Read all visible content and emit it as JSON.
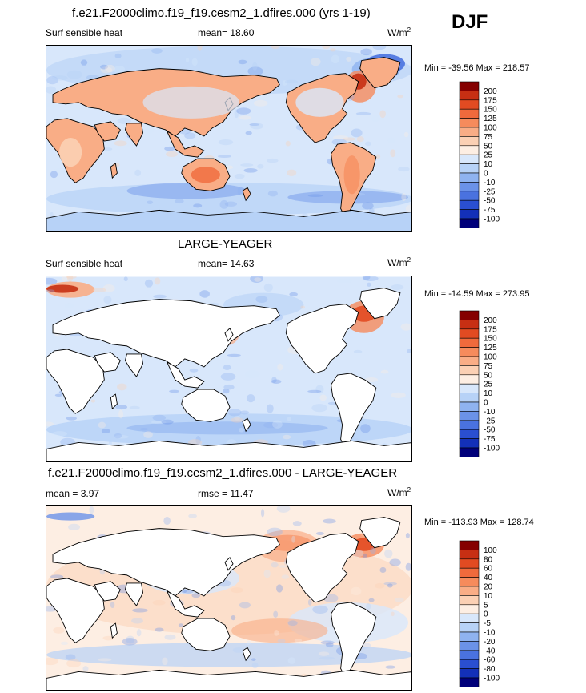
{
  "season": "DJF",
  "panels": [
    {
      "title": "f.e21.F2000climo.f19_f19.cesm2_1.dfires.000 (yrs 1-19)",
      "left_label": "Surf sensible heat",
      "center_label": "mean=  18.60",
      "units_base": "W/m",
      "units_exp": "2",
      "minmax": "Min = -39.56 Max = 218.57",
      "colorbar_labels": [
        "200",
        "175",
        "150",
        "125",
        "100",
        "75",
        "50",
        "25",
        "10",
        "0",
        "-10",
        "-25",
        "-50",
        "-75",
        "-100"
      ],
      "colorbar_colors": [
        "#850000",
        "#c72f13",
        "#e24b22",
        "#f06a3c",
        "#f68b5c",
        "#f9ad86",
        "#fbd0b4",
        "#fdeee3",
        "#d8e7fb",
        "#b7d2f7",
        "#8fb3f0",
        "#6b92e8",
        "#4a72df",
        "#2a4fd1",
        "#1330b8",
        "#00007a"
      ],
      "mask_land": false
    },
    {
      "title": "LARGE-YEAGER",
      "left_label": "Surf sensible heat",
      "center_label": "mean=  14.63",
      "units_base": "W/m",
      "units_exp": "2",
      "minmax": "Min = -14.59 Max = 273.95",
      "colorbar_labels": [
        "200",
        "175",
        "150",
        "125",
        "100",
        "75",
        "50",
        "25",
        "10",
        "0",
        "-10",
        "-25",
        "-50",
        "-75",
        "-100"
      ],
      "colorbar_colors": [
        "#850000",
        "#c72f13",
        "#e24b22",
        "#f06a3c",
        "#f68b5c",
        "#f9ad86",
        "#fbd0b4",
        "#fdeee3",
        "#d8e7fb",
        "#b7d2f7",
        "#8fb3f0",
        "#6b92e8",
        "#4a72df",
        "#2a4fd1",
        "#1330b8",
        "#00007a"
      ],
      "mask_land": true
    },
    {
      "title": "f.e21.F2000climo.f19_f19.cesm2_1.dfires.000 - LARGE-YEAGER",
      "left_label": "mean =   3.97",
      "center_label": "rmse =  11.47",
      "units_base": "W/m",
      "units_exp": "2",
      "minmax": "Min = -113.93 Max = 128.74",
      "colorbar_labels": [
        "100",
        "80",
        "60",
        "40",
        "20",
        "10",
        "5",
        "0",
        "-5",
        "-10",
        "-20",
        "-40",
        "-60",
        "-80",
        "-100"
      ],
      "colorbar_colors": [
        "#850000",
        "#c72f13",
        "#e24b22",
        "#f06a3c",
        "#f68b5c",
        "#f9ad86",
        "#fbd0b4",
        "#fdeee3",
        "#d8e7fb",
        "#b7d2f7",
        "#8fb3f0",
        "#6b92e8",
        "#4a72df",
        "#2a4fd1",
        "#1330b8",
        "#00007a"
      ],
      "mask_land": true
    }
  ],
  "chart_data": [
    {
      "type": "heatmap",
      "title": "f.e21.F2000climo.f19_f19.cesm2_1.dfires.000 (yrs 1-19)",
      "variable": "Surf sensible heat",
      "units": "W/m2",
      "season": "DJF",
      "mean": 18.6,
      "min": -39.56,
      "max": 218.57,
      "contour_levels": [
        -100,
        -75,
        -50,
        -25,
        -10,
        0,
        10,
        25,
        50,
        75,
        100,
        125,
        150,
        175,
        200
      ]
    },
    {
      "type": "heatmap",
      "title": "LARGE-YEAGER",
      "variable": "Surf sensible heat",
      "units": "W/m2",
      "mean": 14.63,
      "min": -14.59,
      "max": 273.95,
      "contour_levels": [
        -100,
        -75,
        -50,
        -25,
        -10,
        0,
        10,
        25,
        50,
        75,
        100,
        125,
        150,
        175,
        200
      ]
    },
    {
      "type": "heatmap",
      "title": "f.e21.F2000climo.f19_f19.cesm2_1.dfires.000 - LARGE-YEAGER",
      "units": "W/m2",
      "mean": 3.97,
      "rmse": 11.47,
      "min": -113.93,
      "max": 128.74,
      "contour_levels": [
        -100,
        -80,
        -60,
        -40,
        -20,
        -10,
        -5,
        0,
        5,
        10,
        20,
        40,
        60,
        80,
        100
      ]
    }
  ]
}
